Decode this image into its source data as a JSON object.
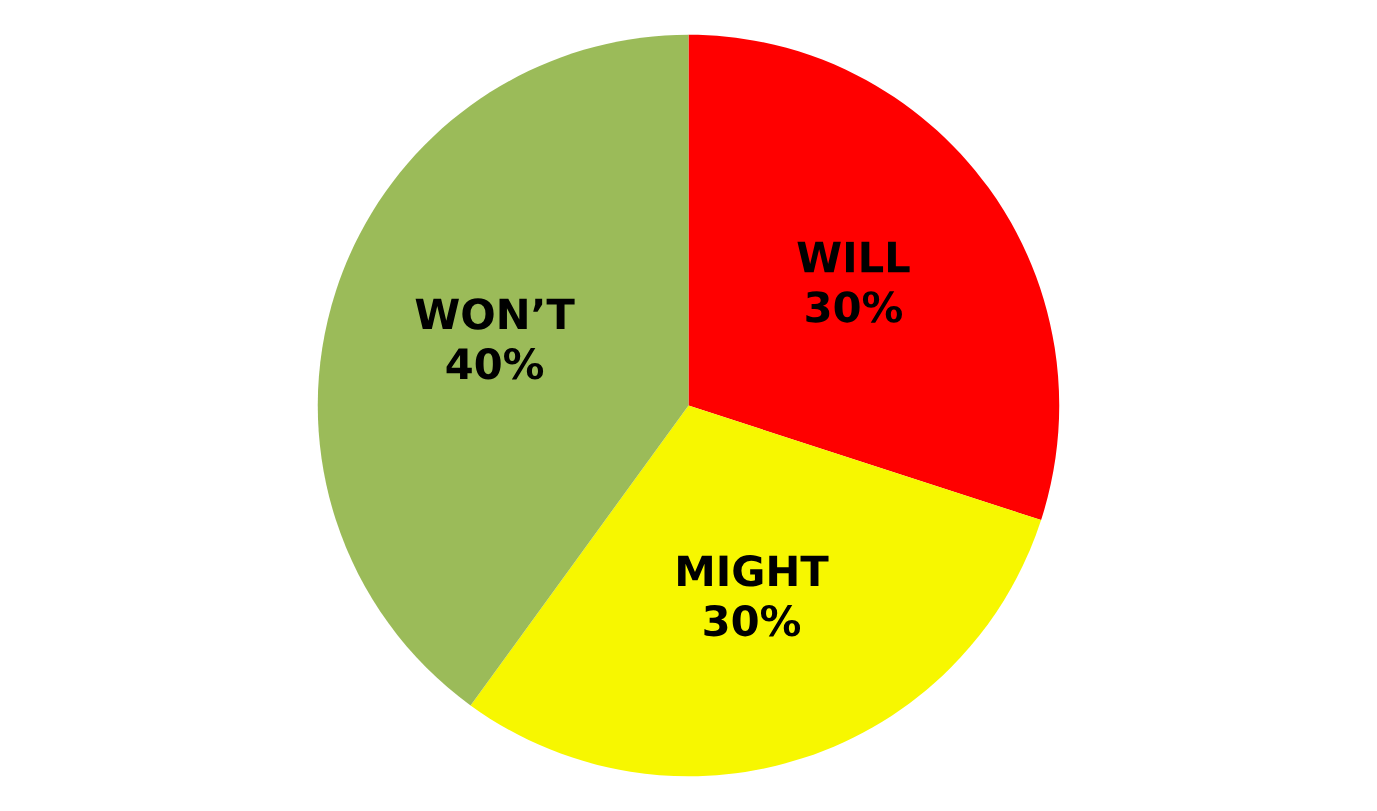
{
  "chart_data": {
    "type": "pie",
    "categories": [
      "WILL",
      "MIGHT",
      "WON’T"
    ],
    "values": [
      30,
      30,
      40
    ],
    "value_labels": [
      "30%",
      "30%",
      "40%"
    ],
    "colors": [
      "#ff0000",
      "#f7f700",
      "#9bbb59"
    ]
  }
}
